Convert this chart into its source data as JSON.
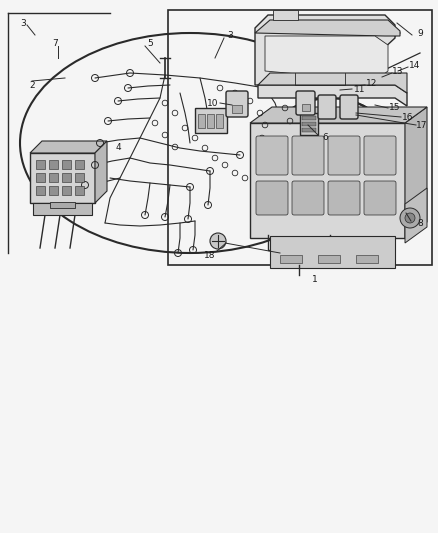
{
  "bg_color": "#f5f5f5",
  "line_color": "#2a2a2a",
  "label_color": "#1a1a1a",
  "fig_width": 4.38,
  "fig_height": 5.33,
  "dpi": 100,
  "label_fs": 6.5
}
